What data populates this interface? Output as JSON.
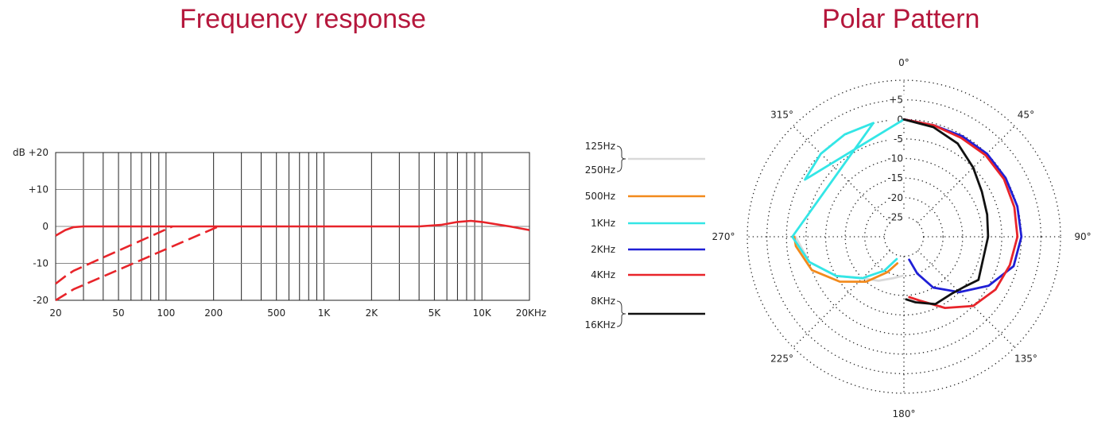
{
  "chart_data": [
    {
      "type": "line",
      "title": "Frequency response",
      "x_scale": "log",
      "xlim": [
        20,
        20000
      ],
      "ylim": [
        -20,
        20
      ],
      "ylabel": "dB",
      "x_ticks": [
        {
          "value": 20,
          "label": "20"
        },
        {
          "value": 50,
          "label": "50"
        },
        {
          "value": 100,
          "label": "100"
        },
        {
          "value": 200,
          "label": "200"
        },
        {
          "value": 500,
          "label": "500"
        },
        {
          "value": 1000,
          "label": "1K"
        },
        {
          "value": 2000,
          "label": "2K"
        },
        {
          "value": 5000,
          "label": "5K"
        },
        {
          "value": 10000,
          "label": "10K"
        },
        {
          "value": 20000,
          "label": "20KHz"
        }
      ],
      "x_gridlines": [
        20,
        30,
        40,
        50,
        60,
        70,
        80,
        90,
        100,
        200,
        300,
        400,
        500,
        600,
        700,
        800,
        900,
        1000,
        2000,
        3000,
        4000,
        5000,
        6000,
        7000,
        8000,
        9000,
        10000,
        20000
      ],
      "y_ticks": [
        {
          "value": 20,
          "label": "+20"
        },
        {
          "value": 10,
          "label": "+10"
        },
        {
          "value": 0,
          "label": "0"
        },
        {
          "value": -10,
          "label": "-10"
        },
        {
          "value": -20,
          "label": "-20"
        }
      ],
      "grid": true,
      "series": [
        {
          "style": "solid",
          "color": "#e8242a",
          "points": [
            [
              20,
              -2.5
            ],
            [
              23,
              -1
            ],
            [
              26,
              -0.2
            ],
            [
              30,
              0
            ],
            [
              100,
              0
            ],
            [
              1000,
              0
            ],
            [
              4000,
              0
            ],
            [
              5500,
              0.4
            ],
            [
              7000,
              1.2
            ],
            [
              8500,
              1.5
            ],
            [
              10000,
              1.2
            ],
            [
              15000,
              0
            ],
            [
              20000,
              -1
            ]
          ]
        },
        {
          "style": "dashed",
          "color": "#e8242a",
          "points": [
            [
              20,
              -15.5
            ],
            [
              23,
              -13.5
            ],
            [
              26,
              -12
            ],
            [
              110,
              0
            ]
          ]
        },
        {
          "style": "dashed",
          "color": "#e8242a",
          "points": [
            [
              20,
              -20
            ],
            [
              26,
              -17
            ],
            [
              215,
              0
            ]
          ]
        }
      ]
    },
    {
      "type": "polar",
      "title": "Polar Pattern",
      "angle_labels": [
        {
          "angle": 0,
          "label": "0°"
        },
        {
          "angle": 45,
          "label": "45°"
        },
        {
          "angle": 90,
          "label": "90°"
        },
        {
          "angle": 135,
          "label": "135°"
        },
        {
          "angle": 180,
          "label": "180°"
        },
        {
          "angle": 225,
          "label": "225°"
        },
        {
          "angle": 270,
          "label": "270°"
        },
        {
          "angle": 315,
          "label": "315°"
        }
      ],
      "radial_levels": [
        5,
        0,
        -5,
        -10,
        -15,
        -20,
        -25
      ],
      "radial_labels": [
        "+5",
        "0",
        "-5",
        "-10",
        "-15",
        "-20",
        "-25"
      ],
      "rlim": [
        -30,
        10
      ],
      "legend": [
        {
          "labels": [
            "125Hz",
            "250Hz"
          ],
          "color": "#d9d9d9",
          "bracket": true
        },
        {
          "labels": [
            "500Hz"
          ],
          "color": "#f28a1c",
          "bracket": false
        },
        {
          "labels": [
            "1KHz"
          ],
          "color": "#33e6e6",
          "bracket": false
        },
        {
          "labels": [
            "2KHz"
          ],
          "color": "#1f1fd6",
          "bracket": false
        },
        {
          "labels": [
            "4KHz"
          ],
          "color": "#e8242a",
          "bracket": false
        },
        {
          "labels": [
            "8KHz",
            "16KHz"
          ],
          "color": "#111111",
          "bracket": true
        }
      ],
      "series": [
        {
          "name": "125Hz / 250Hz",
          "color": "#d9d9d9",
          "points": [
            [
              182,
              -20
            ],
            [
              195,
              -19
            ],
            [
              210,
              -17
            ],
            [
              225,
              -15
            ],
            [
              240,
              -10
            ],
            [
              255,
              -5
            ],
            [
              270,
              -2.3
            ]
          ]
        },
        {
          "name": "500Hz",
          "color": "#f28a1c",
          "points": [
            [
              194,
              -23
            ],
            [
              205,
              -20
            ],
            [
              220,
              -15
            ],
            [
              235,
              -10
            ],
            [
              250,
              -5
            ],
            [
              265,
              -2.3
            ],
            [
              270,
              -2
            ]
          ]
        },
        {
          "name": "1KHz",
          "color": "#33e6e6",
          "points": [
            [
              0,
              0
            ],
            [
              300,
              -0.8
            ],
            [
              315,
              0
            ],
            [
              330,
              0.2
            ],
            [
              345,
              0.1
            ],
            [
              270,
              -1.5
            ],
            [
              255,
              -5
            ],
            [
              240,
              -10
            ],
            [
              225,
              -15
            ],
            [
              210,
              -20
            ],
            [
              198,
              -24
            ]
          ]
        },
        {
          "name": "2KHz",
          "color": "#1f1fd6",
          "points": [
            [
              0,
              0
            ],
            [
              15,
              -0.5
            ],
            [
              30,
              -0.3
            ],
            [
              45,
              0
            ],
            [
              60,
              0
            ],
            [
              75,
              0
            ],
            [
              90,
              0
            ],
            [
              105,
              -1
            ],
            [
              120,
              -5
            ],
            [
              135,
              -10
            ],
            [
              150,
              -15
            ],
            [
              160,
              -20
            ],
            [
              167,
              -24
            ]
          ]
        },
        {
          "name": "4KHz",
          "color": "#e8242a",
          "points": [
            [
              0,
              0
            ],
            [
              15,
              -0.5
            ],
            [
              30,
              -0.8
            ],
            [
              45,
              -0.5
            ],
            [
              60,
              -0.5
            ],
            [
              75,
              -0.8
            ],
            [
              90,
              -1
            ],
            [
              105,
              -2
            ],
            [
              120,
              -3
            ],
            [
              135,
              -5
            ],
            [
              150,
              -9
            ],
            [
              165,
              -13
            ],
            [
              175,
              -14.5
            ]
          ]
        },
        {
          "name": "8KHz / 16KHz",
          "color": "#111111",
          "points": [
            [
              0,
              0
            ],
            [
              15,
              -1
            ],
            [
              30,
              -2.5
            ],
            [
              45,
              -5
            ],
            [
              60,
              -7
            ],
            [
              75,
              -8
            ],
            [
              90,
              -8.5
            ],
            [
              105,
              -9
            ],
            [
              120,
              -8
            ],
            [
              130,
              -10
            ],
            [
              140,
              -11
            ],
            [
              155,
              -11
            ],
            [
              170,
              -13
            ],
            [
              178,
              -14
            ]
          ]
        }
      ]
    }
  ]
}
